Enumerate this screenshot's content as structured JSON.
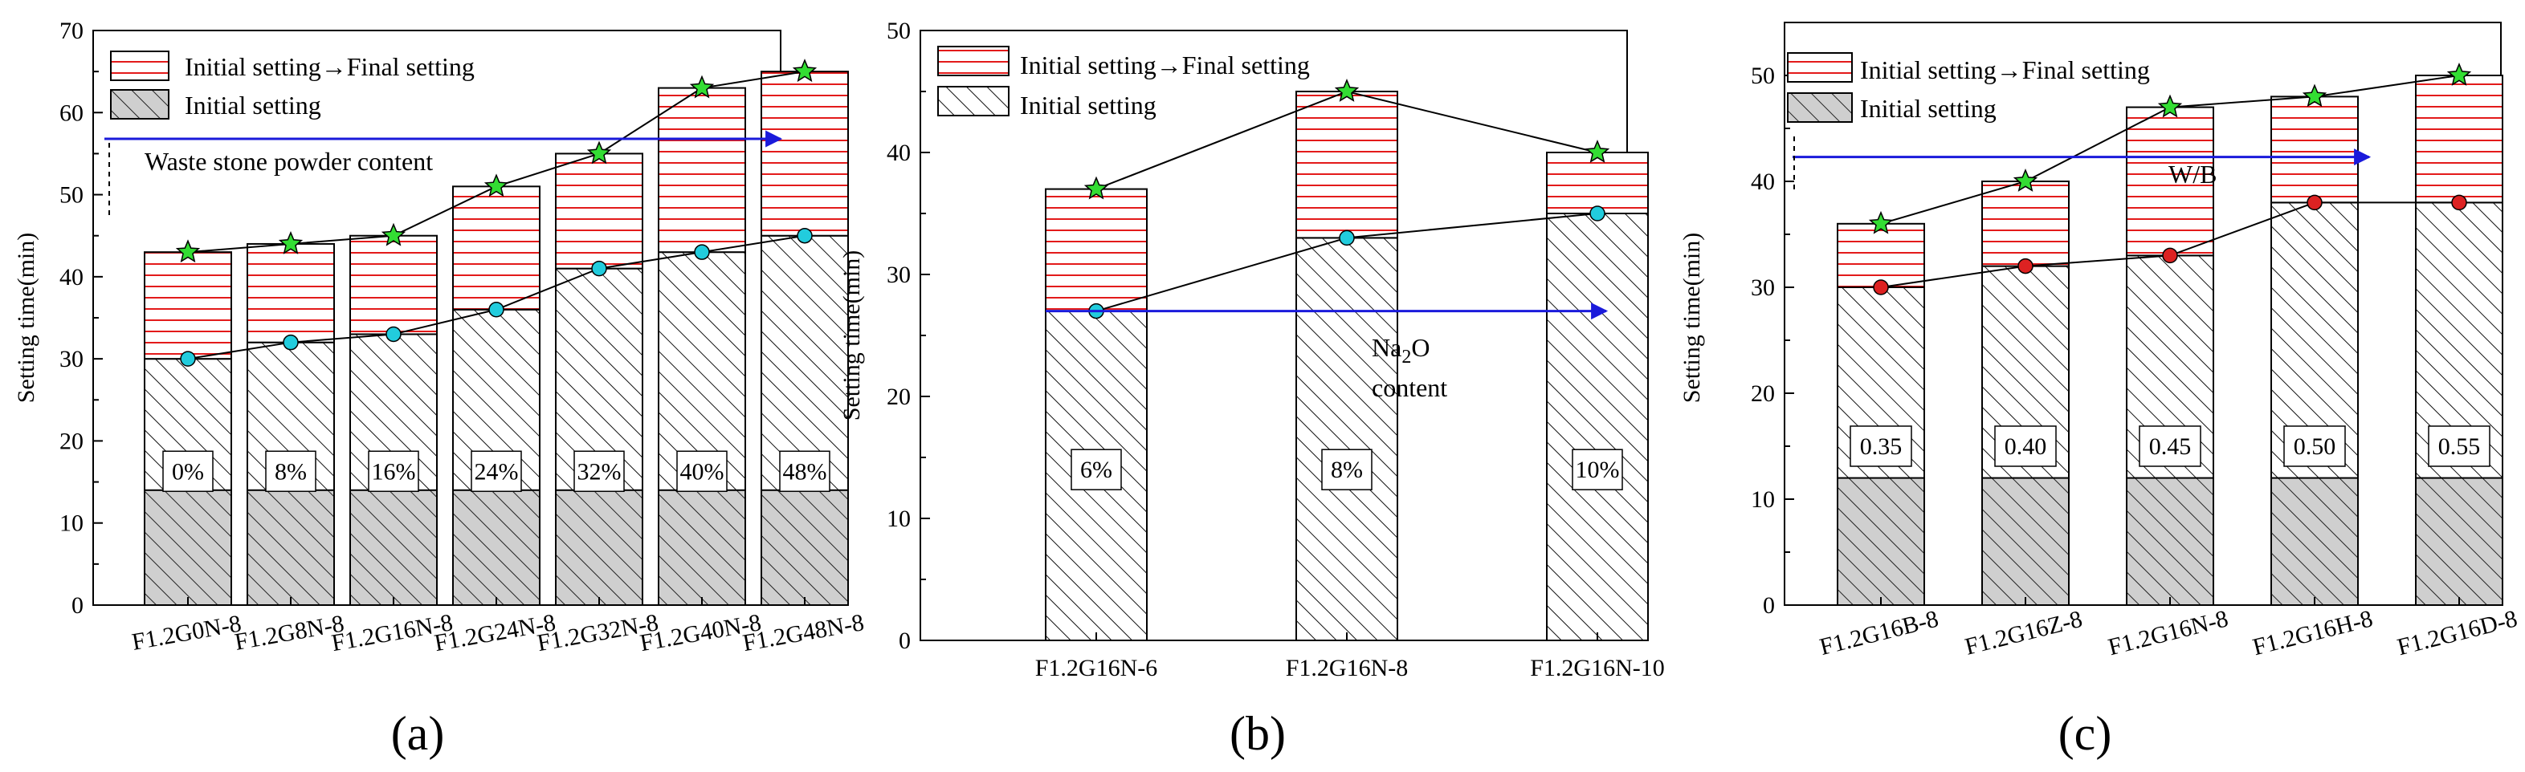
{
  "chart_data": [
    {
      "type": "bar",
      "stacked": true,
      "panel_label": "(a)",
      "ylabel": "Setting time(min)",
      "ylim": [
        0,
        70
      ],
      "yticks": [
        0,
        10,
        20,
        30,
        40,
        50,
        60,
        70
      ],
      "categories": [
        "F1.2G0N-8",
        "F1.2G8N-8",
        "F1.2G16N-8",
        "F1.2G24N-8",
        "F1.2G32N-8",
        "F1.2G40N-8",
        "F1.2G48N-8"
      ],
      "series": [
        {
          "name": "Initial setting",
          "values": [
            30,
            32,
            33,
            36,
            41,
            43,
            45
          ]
        },
        {
          "name": "Initial setting→Final setting",
          "values": [
            13,
            12,
            12,
            15,
            14,
            20,
            20
          ]
        }
      ],
      "final_setting": [
        43,
        44,
        45,
        51,
        55,
        63,
        65
      ],
      "bar_labels": [
        "0%",
        "8%",
        "16%",
        "24%",
        "32%",
        "40%",
        "48%"
      ],
      "annotation": {
        "text": "Waste stone powder content",
        "arrow_y": 56.8
      },
      "legend": [
        "Initial setting→Final setting",
        "Initial setting"
      ],
      "marker_colors": {
        "initial": "#22ccdd",
        "final": "#33dd33"
      }
    },
    {
      "type": "bar",
      "stacked": true,
      "panel_label": "(b)",
      "ylabel": "Setting time(min)",
      "ylim": [
        0,
        50
      ],
      "yticks": [
        0,
        10,
        20,
        30,
        40,
        50
      ],
      "categories": [
        "F1.2G16N-6",
        "F1.2G16N-8",
        "F1.2G16N-10"
      ],
      "series": [
        {
          "name": "Initial setting",
          "values": [
            27,
            33,
            35
          ]
        },
        {
          "name": "Initial setting→Final setting",
          "values": [
            10,
            12,
            5
          ]
        }
      ],
      "final_setting": [
        37,
        45,
        40
      ],
      "bar_labels": [
        "6%",
        "8%",
        "10%"
      ],
      "annotation": {
        "text_main": "Na",
        "text_sub": "2",
        "text_tail": "O",
        "text_line2": "content",
        "arrow_y": 27
      },
      "legend": [
        "Initial setting→Final setting",
        "Initial setting"
      ],
      "marker_colors": {
        "initial": "#22ccdd",
        "final": "#33dd33"
      }
    },
    {
      "type": "bar",
      "stacked": true,
      "panel_label": "(c)",
      "ylabel": "Setting time(min)",
      "ylim": [
        0,
        55
      ],
      "yticks": [
        0,
        10,
        20,
        30,
        40,
        50
      ],
      "categories": [
        "F1.2G16B-8",
        "F1.2G16Z-8",
        "F1.2G16N-8",
        "F1.2G16H-8",
        "F1.2G16D-8"
      ],
      "series": [
        {
          "name": "Initial setting",
          "values": [
            30,
            32,
            33,
            38,
            38
          ]
        },
        {
          "name": "Initial setting→Final setting",
          "values": [
            6,
            8,
            14,
            10,
            12
          ]
        }
      ],
      "final_setting": [
        36,
        40,
        47,
        48,
        50
      ],
      "bar_labels": [
        "0.35",
        "0.40",
        "0.45",
        "0.50",
        "0.55"
      ],
      "annotation": {
        "text": "W/B",
        "arrow_y": 42.3
      },
      "legend": [
        "Initial setting→Final setting",
        "Initial setting"
      ],
      "marker_colors": {
        "initial": "#dd2222",
        "final": "#33dd33"
      }
    }
  ]
}
